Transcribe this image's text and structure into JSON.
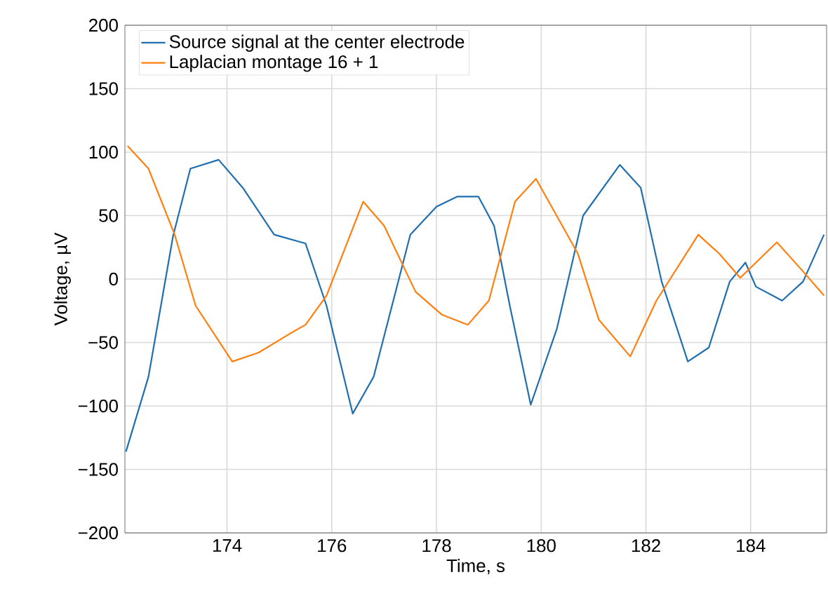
{
  "chart_data": {
    "type": "line",
    "xlabel": "Time, s",
    "ylabel": "Voltage, µV",
    "xlim": [
      172.05,
      185.45
    ],
    "ylim": [
      -200,
      200
    ],
    "xticks": [
      174,
      176,
      178,
      180,
      182,
      184
    ],
    "yticks": [
      {
        "value": -200,
        "label": "−200"
      },
      {
        "value": -150,
        "label": "−150"
      },
      {
        "value": -100,
        "label": "−100"
      },
      {
        "value": -50,
        "label": "−50"
      },
      0,
      50,
      100,
      150,
      200
    ],
    "grid": true,
    "legend": "top left",
    "marker": "none",
    "line_style": "solid",
    "series": [
      {
        "name": "Source signal at the center electrode",
        "color": "#1f6eb0",
        "x": [
          172.07,
          172.5,
          172.97,
          173.3,
          173.84,
          174.3,
          174.9,
          175.5,
          175.9,
          176.4,
          176.8,
          177.5,
          178.0,
          178.4,
          178.8,
          179.1,
          179.4,
          179.8,
          180.3,
          180.8,
          181.5,
          181.9,
          182.3,
          182.8,
          183.2,
          183.6,
          183.9,
          184.1,
          184.6,
          185.0,
          185.4
        ],
        "values": [
          -136,
          -77,
          34,
          87,
          94,
          72,
          35,
          28,
          -21,
          -106,
          -77,
          35,
          57,
          65,
          65,
          42,
          -21,
          -99,
          -39,
          50,
          90,
          72,
          -2,
          -65,
          -54,
          -2,
          13,
          -6,
          -17,
          -2,
          35
        ]
      },
      {
        "name": "Laplacian montage 16 + 1",
        "color": "#ff7f0e",
        "x": [
          172.1,
          172.5,
          173.0,
          173.4,
          174.1,
          174.6,
          175.2,
          175.5,
          175.9,
          176.6,
          177.0,
          177.6,
          178.1,
          178.6,
          179.0,
          179.5,
          179.9,
          180.7,
          181.1,
          181.7,
          182.2,
          183.0,
          183.4,
          183.8,
          184.5,
          185.0,
          185.4
        ],
        "values": [
          105,
          87,
          35,
          -21,
          -65,
          -58,
          -43,
          -36,
          -13,
          61,
          42,
          -10,
          -28,
          -36,
          -17,
          61,
          79,
          20,
          -32,
          -61,
          -17,
          35,
          20,
          1,
          29,
          6,
          -13
        ]
      }
    ]
  }
}
